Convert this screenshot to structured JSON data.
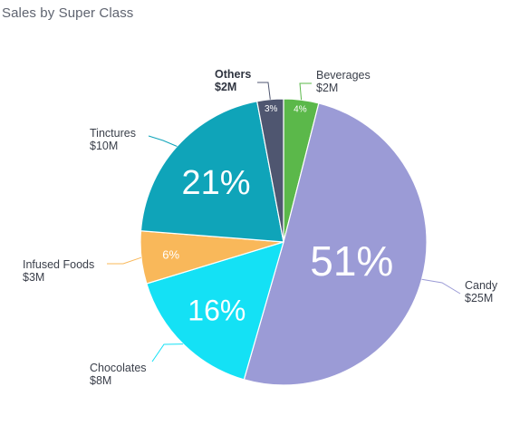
{
  "chart_data": {
    "type": "pie",
    "title": "Sales by Super Class",
    "slices": [
      {
        "name": "Beverages",
        "value_label": "$2M",
        "value": 2,
        "percent": 4,
        "color": "#5bb84a",
        "name_bold": false
      },
      {
        "name": "Candy",
        "value_label": "$25M",
        "value": 25,
        "percent": 51,
        "color": "#9b9bd6",
        "name_bold": false
      },
      {
        "name": "Chocolates",
        "value_label": "$8M",
        "value": 8,
        "percent": 16,
        "color": "#14e1f5",
        "name_bold": false
      },
      {
        "name": "Infused Foods",
        "value_label": "$3M",
        "value": 3,
        "percent": 6,
        "color": "#f9b85a",
        "name_bold": false
      },
      {
        "name": "Tinctures",
        "value_label": "$10M",
        "value": 10,
        "percent": 21,
        "color": "#0fa4b9",
        "name_bold": false
      },
      {
        "name": "Others",
        "value_label": "$2M",
        "value": 2,
        "percent": 3,
        "color": "#4f5670",
        "name_bold": true
      }
    ]
  }
}
